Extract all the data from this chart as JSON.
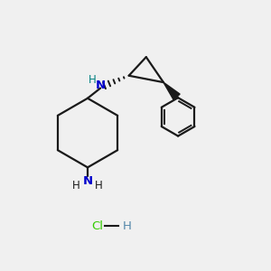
{
  "background_color": "#f0f0f0",
  "bond_color": "#1a1a1a",
  "N_color": "#0000cc",
  "H_N_color": "#008080",
  "Cl_color": "#33cc00",
  "H_HCl_color": "#5588aa",
  "line_width": 1.6,
  "fig_width": 3.0,
  "fig_height": 3.0,
  "dpi": 100,
  "xlim": [
    0,
    10
  ],
  "ylim": [
    0,
    10
  ]
}
